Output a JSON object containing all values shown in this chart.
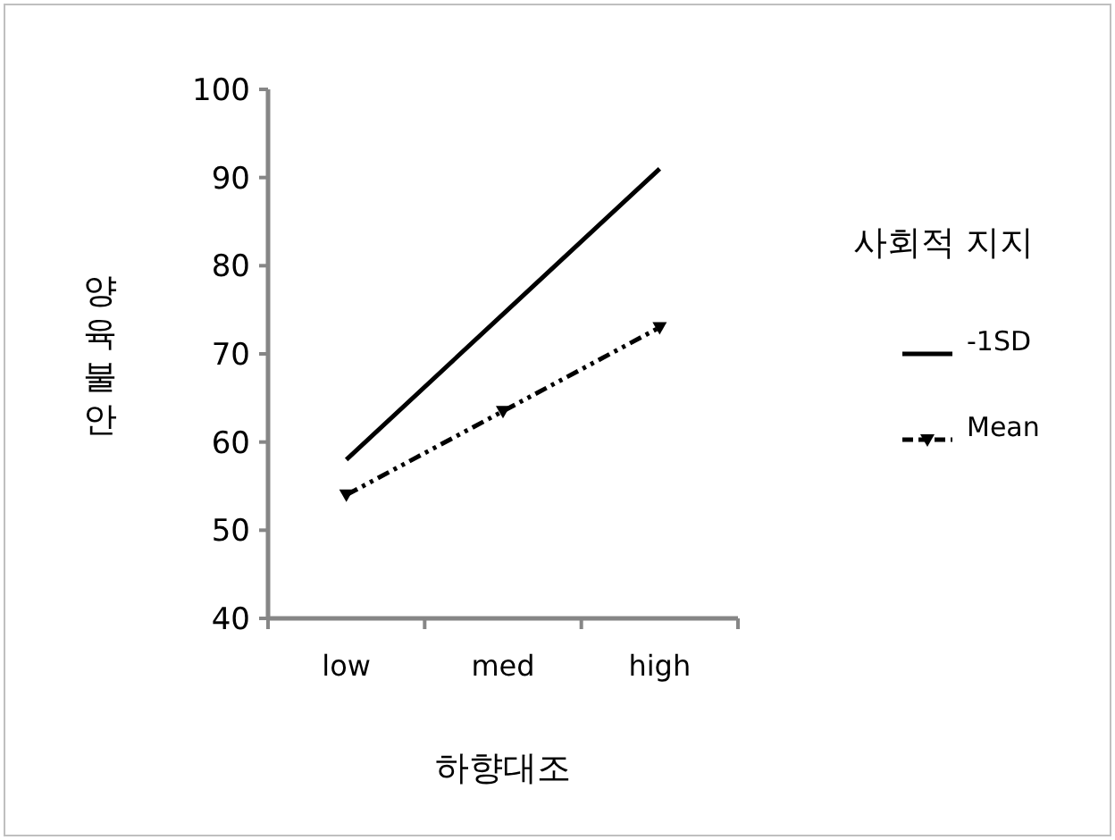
{
  "chart_data": {
    "type": "line",
    "xlabel": "하향대조",
    "ylabel": "양육불안",
    "legend_title": "사회적 지지",
    "categories": [
      "low",
      "med",
      "high"
    ],
    "series": [
      {
        "name": "-1SD",
        "color": "#000000",
        "values": [
          58,
          74.5,
          91
        ],
        "line_style": "solid",
        "marker": "none"
      },
      {
        "name": "Mean",
        "color": "#000000",
        "values": [
          54,
          63.5,
          73
        ],
        "line_style": "dashed",
        "marker": "triangle"
      }
    ],
    "ylim": [
      40,
      100
    ],
    "yticks": [
      40,
      50,
      60,
      70,
      80,
      90,
      100
    ],
    "grid": false,
    "legend": "right"
  }
}
